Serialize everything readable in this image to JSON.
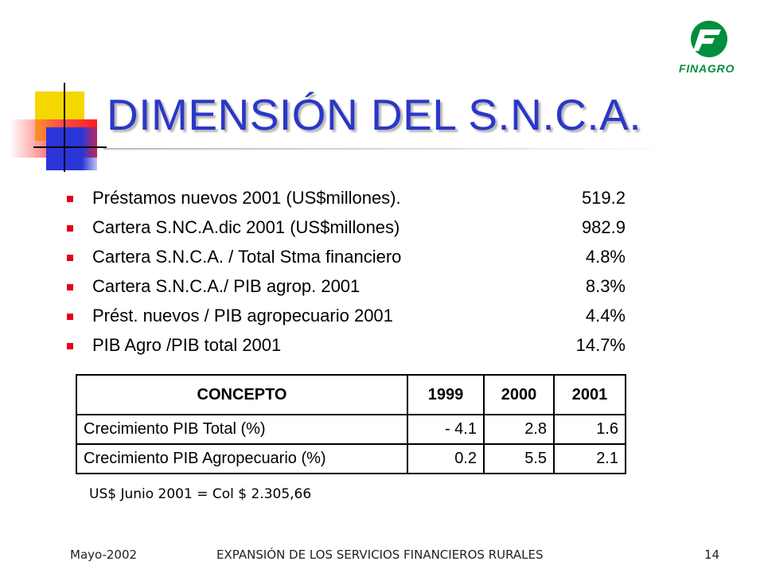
{
  "slide": {
    "title": "DIMENSIÓN DEL S.N.C.A.",
    "logo_text": "FINAGRO",
    "logo_icon": "finagro-logo-icon",
    "bullet_icon": "red-square-bullet",
    "colors": {
      "title": "#2a37c8",
      "bullet": "#e2001a",
      "logo": "#008f3e"
    }
  },
  "bullets": [
    {
      "label": "Préstamos nuevos 2001 (US$millones).",
      "value": "519.2"
    },
    {
      "label": "Cartera S.NC.A.dic 2001 (US$millones)",
      "value": "982.9"
    },
    {
      "label": "Cartera S.N.C.A. / Total Stma financiero",
      "value": "4.8%"
    },
    {
      "label": "Cartera S.N.C.A./ PIB agrop. 2001",
      "value": "8.3%"
    },
    {
      "label": "Prést. nuevos / PIB agropecuario 2001",
      "value": "4.4%"
    },
    {
      "label": "PIB Agro /PIB total 2001",
      "value": "14.7%"
    }
  ],
  "table": {
    "headers": [
      "CONCEPTO",
      "1999",
      "2000",
      "2001"
    ],
    "rows": [
      [
        "Crecimiento PIB Total (%)",
        "- 4.1",
        "2.8",
        "1.6"
      ],
      [
        "Crecimiento PIB Agropecuario (%)",
        "0.2",
        "5.5",
        "2.1"
      ]
    ]
  },
  "note": "US$ Junio 2001 = Col $ 2.305,66",
  "footer": {
    "date": "Mayo-2002",
    "center": "EXPANSIÓN DE LOS SERVICIOS FINANCIEROS RURALES",
    "page": "14"
  }
}
